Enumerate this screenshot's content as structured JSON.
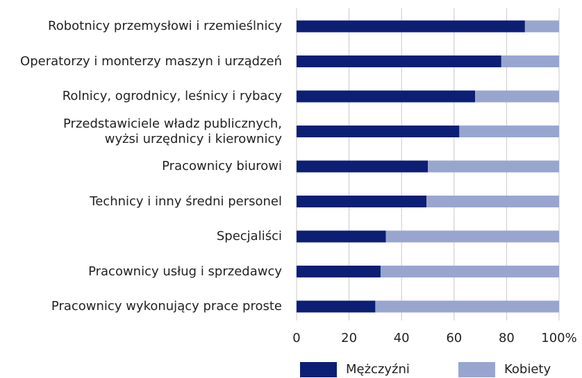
{
  "chart_data": {
    "type": "stacked-bar-horizontal",
    "categories": [
      "Robotnicy przemysłowi i rzemieślnicy",
      "Operatorzy i monterzy maszyn i urządzeń",
      "Rolnicy, ogrodnicy, leśnicy i rybacy",
      "Przedstawiciele władz publicznych,\nwyżsi urzędnicy i kierownicy",
      "Pracownicy biurowi",
      "Technicy i inny średni personel",
      "Specjaliści",
      "Pracownicy usług i sprzedawcy",
      "Pracownicy wykonujący prace proste"
    ],
    "series": [
      {
        "name": "Mężczyźni",
        "color": "#0c1f75",
        "values": [
          87,
          78,
          68,
          62,
          50,
          49.5,
          34,
          32,
          30
        ]
      },
      {
        "name": "Kobiety",
        "color": "#98a6cf",
        "values": [
          13,
          22,
          32,
          38,
          50,
          50.5,
          66,
          68,
          70
        ]
      }
    ],
    "xlim": [
      0,
      100
    ],
    "xticks": [
      0,
      20,
      40,
      60,
      80,
      {
        "value": 100,
        "label": "100%"
      }
    ],
    "grid": true,
    "legend": "bottom"
  }
}
